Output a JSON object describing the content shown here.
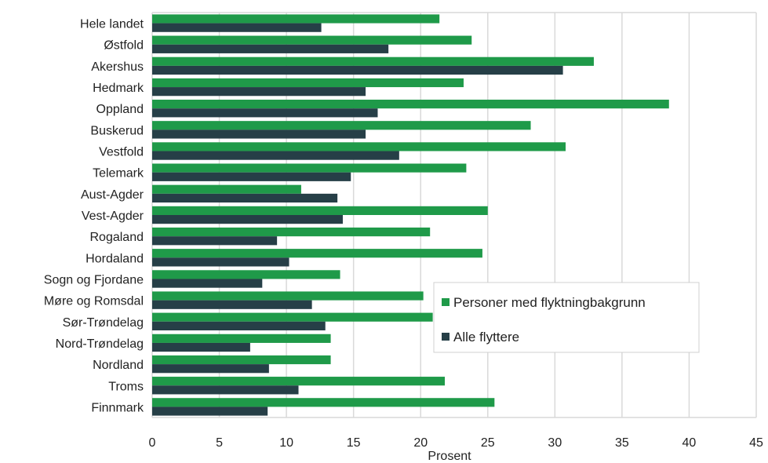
{
  "chart_data": {
    "type": "bar",
    "orientation": "horizontal",
    "categories": [
      "Hele landet",
      "Østfold",
      "Akershus",
      "Hedmark",
      "Oppland",
      "Buskerud",
      "Vestfold",
      "Telemark",
      "Aust-Agder",
      "Vest-Agder",
      "Rogaland",
      "Hordaland",
      "Sogn og Fjordane",
      "Møre og Romsdal",
      "Sør-Trøndelag",
      "Nord-Trøndelag",
      "Nordland",
      "Troms",
      "Finnmark"
    ],
    "series": [
      {
        "name": "Personer med flyktningbakgrunn",
        "color": "#1f9a49",
        "values": [
          21.4,
          23.8,
          32.9,
          23.2,
          38.5,
          28.2,
          30.8,
          23.4,
          11.1,
          25.0,
          20.7,
          24.6,
          14.0,
          20.2,
          20.9,
          13.3,
          13.3,
          21.8,
          25.5
        ]
      },
      {
        "name": "Alle flyttere",
        "color": "#263f47",
        "values": [
          12.6,
          17.6,
          30.6,
          15.9,
          16.8,
          15.9,
          18.4,
          14.8,
          13.8,
          14.2,
          9.3,
          10.2,
          8.2,
          11.9,
          12.9,
          7.3,
          8.7,
          10.9,
          8.6
        ]
      }
    ],
    "xlabel": "Prosent",
    "ylabel": "",
    "xlim": [
      0,
      45
    ],
    "xticks": [
      0,
      5,
      10,
      15,
      20,
      25,
      30,
      35,
      40,
      45
    ],
    "grid": true,
    "legend": "bottom-right"
  }
}
